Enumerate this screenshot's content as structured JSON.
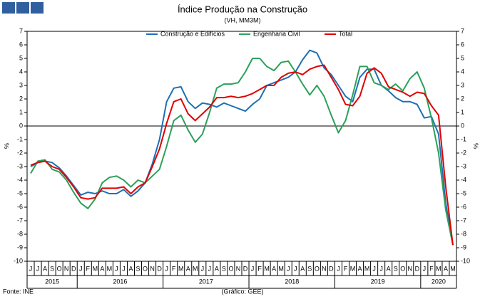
{
  "chart_data": {
    "type": "line",
    "title": "Índice Produção na Construção",
    "subtitle": "(VH, MM3M)",
    "y_label": "%",
    "source": "Fonte: INE",
    "credit": "(Gráfico: GEE)",
    "categories": [
      "J",
      "J",
      "A",
      "S",
      "O",
      "N",
      "D",
      "J",
      "F",
      "M",
      "A",
      "M",
      "J",
      "J",
      "A",
      "S",
      "O",
      "N",
      "D",
      "J",
      "F",
      "M",
      "A",
      "M",
      "J",
      "J",
      "A",
      "S",
      "O",
      "N",
      "D",
      "J",
      "F",
      "M",
      "A",
      "M",
      "J",
      "J",
      "A",
      "S",
      "O",
      "N",
      "D",
      "J",
      "F",
      "M",
      "A",
      "M",
      "J",
      "J",
      "A",
      "S",
      "O",
      "N",
      "D",
      "J",
      "F",
      "M",
      "A",
      "M"
    ],
    "year_groups": [
      {
        "label": "2015",
        "months": 7
      },
      {
        "label": "2016",
        "months": 12
      },
      {
        "label": "2017",
        "months": 12
      },
      {
        "label": "2018",
        "months": 12
      },
      {
        "label": "2019",
        "months": 12
      },
      {
        "label": "2020",
        "months": 5
      }
    ],
    "ylim": [
      -10,
      7
    ],
    "yticks": [
      7,
      6,
      5,
      4,
      3,
      2,
      1,
      0,
      -1,
      -2,
      -3,
      -4,
      -5,
      -6,
      -7,
      -8,
      -9,
      -10
    ],
    "zero_line": true,
    "series": [
      {
        "name": "Construção e Edifícios",
        "color": "#1f6fb5",
        "values": [
          -3.0,
          -2.7,
          -2.6,
          -2.7,
          -3.1,
          -3.7,
          -4.4,
          -5.1,
          -4.9,
          -5.0,
          -4.8,
          -5.0,
          -5.0,
          -4.7,
          -5.2,
          -4.8,
          -4.2,
          -2.8,
          -1.0,
          1.8,
          2.8,
          2.9,
          1.8,
          1.3,
          1.7,
          1.6,
          1.4,
          1.7,
          1.5,
          1.3,
          1.1,
          1.6,
          2.0,
          3.0,
          3.2,
          3.4,
          3.6,
          4.0,
          4.9,
          5.6,
          5.4,
          4.3,
          3.8,
          3.0,
          2.2,
          1.8,
          3.6,
          4.2,
          4.2,
          3.0,
          2.6,
          2.1,
          1.8,
          1.8,
          1.6,
          0.6,
          0.7,
          -0.6,
          -5.7,
          -8.8
        ]
      },
      {
        "name": "Engenharia Civil",
        "color": "#2ca05a",
        "values": [
          -3.5,
          -2.6,
          -2.5,
          -3.2,
          -3.4,
          -4.0,
          -4.9,
          -5.7,
          -6.1,
          -5.4,
          -4.2,
          -3.8,
          -3.7,
          -4.0,
          -4.5,
          -4.0,
          -4.2,
          -3.7,
          -3.2,
          -1.5,
          0.4,
          0.8,
          -0.3,
          -1.2,
          -0.6,
          1.0,
          2.8,
          3.1,
          3.1,
          3.2,
          4.0,
          5.0,
          5.0,
          4.4,
          4.1,
          4.7,
          4.8,
          4.0,
          3.1,
          2.3,
          3.0,
          2.2,
          0.8,
          -0.5,
          0.4,
          2.3,
          4.4,
          4.4,
          3.2,
          3.0,
          2.7,
          3.1,
          2.6,
          3.5,
          4.0,
          2.8,
          0.6,
          -2.0,
          -6.2,
          -8.8
        ]
      },
      {
        "name": "Total",
        "color": "#e00000",
        "values": [
          -2.9,
          -2.7,
          -2.6,
          -3.0,
          -3.2,
          -3.8,
          -4.5,
          -5.3,
          -5.4,
          -5.3,
          -4.6,
          -4.6,
          -4.6,
          -4.5,
          -5.0,
          -4.5,
          -4.2,
          -3.0,
          -1.7,
          0.2,
          1.8,
          2.0,
          0.9,
          0.4,
          0.9,
          1.4,
          2.1,
          2.1,
          2.2,
          2.1,
          2.2,
          2.4,
          2.7,
          3.0,
          3.0,
          3.6,
          3.9,
          4.0,
          3.8,
          4.2,
          4.4,
          4.5,
          3.6,
          2.7,
          1.6,
          1.5,
          2.2,
          3.9,
          4.3,
          3.9,
          2.9,
          2.7,
          2.5,
          2.2,
          2.5,
          2.4,
          1.5,
          0.8,
          -4.5,
          -8.8
        ]
      }
    ]
  }
}
